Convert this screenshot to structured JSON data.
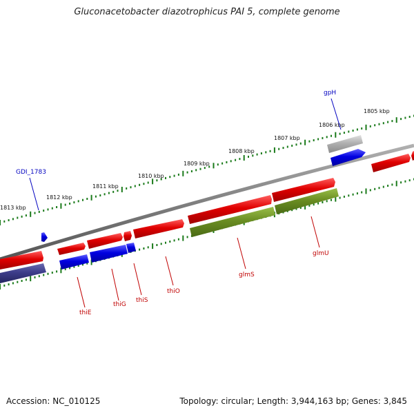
{
  "title": "Gluconacetobacter diazotrophicus PAI 5, complete genome",
  "footer": {
    "accession": "Accession: NC_010125",
    "summary": "Topology: circular; Length: 3,944,163 bp; Genes: 3,845"
  },
  "colors": {
    "backbone": "#808080",
    "forward_gene": "#e00000",
    "reverse_gene": "#0000e0",
    "rrna_operon": "#6b8e23",
    "pseudo_gene": "#b0b0b0",
    "dark_gene": "#3d3d8a",
    "tick": "#1a7a1a",
    "label_red": "#c00000",
    "label_blue": "#0000c0"
  },
  "scale_labels": [
    "1813 kbp",
    "1812 kbp",
    "1811 kbp",
    "1810 kbp",
    "1809 kbp",
    "1808 kbp",
    "1807 kbp",
    "1806 kbp",
    "1805 kbp"
  ],
  "gene_labels": {
    "gdi": "GDI_1783",
    "gph": "gpH",
    "thiE": "thiE",
    "thiG": "thiG",
    "thiS": "thiS",
    "thiO": "thiO",
    "glmS": "glmS",
    "glmU": "glmU"
  }
}
